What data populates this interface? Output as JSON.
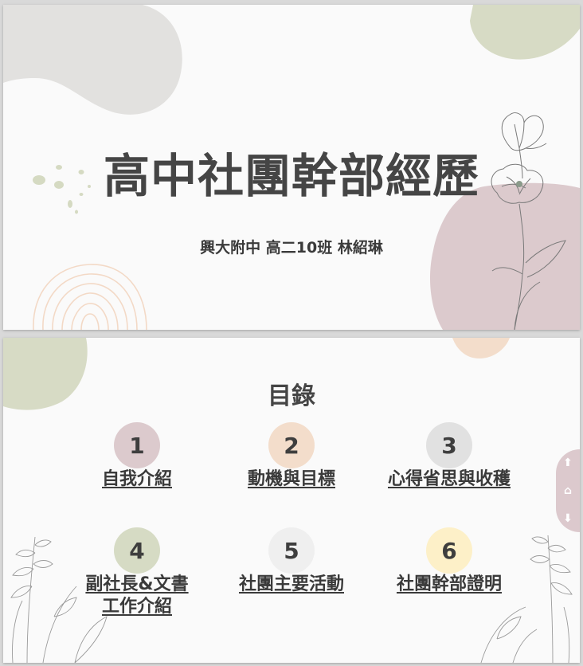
{
  "slide1": {
    "title": "高中社團幹部經歷",
    "subtitle": "興大附中 高二10班 林紹琳"
  },
  "slide2": {
    "heading": "目錄",
    "items": [
      {
        "number": "1",
        "label": "自我介紹",
        "color": "#dccacd"
      },
      {
        "number": "2",
        "label": "動機與目標",
        "color": "#f3ddcb"
      },
      {
        "number": "3",
        "label": "心得省思與收穫",
        "color": "#e1e1e1"
      },
      {
        "number": "4",
        "label": "副社長&文書工作介紹",
        "color": "#d6dbc4"
      },
      {
        "number": "5",
        "label": "社團主要活動",
        "color": "#efefef"
      },
      {
        "number": "6",
        "label": "社團幹部證明",
        "color": "#fdf0c8"
      }
    ]
  },
  "nav": {
    "up_icon": "⬆",
    "home_icon": "⌂",
    "down_icon": "⬇"
  }
}
